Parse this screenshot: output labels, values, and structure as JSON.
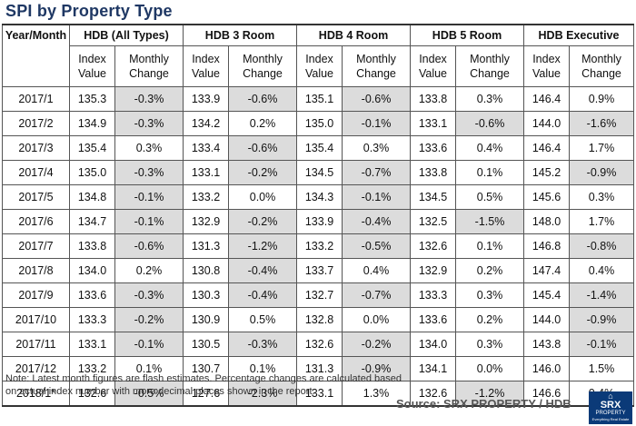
{
  "title": "SPI by Property Type",
  "header": {
    "first_col": "Year/Month",
    "groups": [
      "HDB (All Types)",
      "HDB 3 Room",
      "HDB 4 Room",
      "HDB 5 Room",
      "HDB Executive"
    ],
    "sub_index": "Index Value",
    "sub_change": "Monthly Change"
  },
  "rows": [
    {
      "period": "2017/1",
      "cells": [
        "135.3",
        "-0.3%",
        "133.9",
        "-0.6%",
        "135.1",
        "-0.6%",
        "133.8",
        "0.3%",
        "146.4",
        "0.9%"
      ]
    },
    {
      "period": "2017/2",
      "cells": [
        "134.9",
        "-0.3%",
        "134.2",
        "0.2%",
        "135.0",
        "-0.1%",
        "133.1",
        "-0.6%",
        "144.0",
        "-1.6%"
      ]
    },
    {
      "period": "2017/3",
      "cells": [
        "135.4",
        "0.3%",
        "133.4",
        "-0.6%",
        "135.4",
        "0.3%",
        "133.6",
        "0.4%",
        "146.4",
        "1.7%"
      ]
    },
    {
      "period": "2017/4",
      "cells": [
        "135.0",
        "-0.3%",
        "133.1",
        "-0.2%",
        "134.5",
        "-0.7%",
        "133.8",
        "0.1%",
        "145.2",
        "-0.9%"
      ]
    },
    {
      "period": "2017/5",
      "cells": [
        "134.8",
        "-0.1%",
        "133.2",
        "0.0%",
        "134.3",
        "-0.1%",
        "134.5",
        "0.5%",
        "145.6",
        "0.3%"
      ]
    },
    {
      "period": "2017/6",
      "cells": [
        "134.7",
        "-0.1%",
        "132.9",
        "-0.2%",
        "133.9",
        "-0.4%",
        "132.5",
        "-1.5%",
        "148.0",
        "1.7%"
      ]
    },
    {
      "period": "2017/7",
      "cells": [
        "133.8",
        "-0.6%",
        "131.3",
        "-1.2%",
        "133.2",
        "-0.5%",
        "132.6",
        "0.1%",
        "146.8",
        "-0.8%"
      ]
    },
    {
      "period": "2017/8",
      "cells": [
        "134.0",
        "0.2%",
        "130.8",
        "-0.4%",
        "133.7",
        "0.4%",
        "132.9",
        "0.2%",
        "147.4",
        "0.4%"
      ]
    },
    {
      "period": "2017/9",
      "cells": [
        "133.6",
        "-0.3%",
        "130.3",
        "-0.4%",
        "132.7",
        "-0.7%",
        "133.3",
        "0.3%",
        "145.4",
        "-1.4%"
      ]
    },
    {
      "period": "2017/10",
      "cells": [
        "133.3",
        "-0.2%",
        "130.9",
        "0.5%",
        "132.8",
        "0.0%",
        "133.6",
        "0.2%",
        "144.0",
        "-0.9%"
      ]
    },
    {
      "period": "2017/11",
      "cells": [
        "133.1",
        "-0.1%",
        "130.5",
        "-0.3%",
        "132.6",
        "-0.2%",
        "134.0",
        "0.3%",
        "143.8",
        "-0.1%"
      ]
    },
    {
      "period": "2017/12",
      "cells": [
        "133.2",
        "0.1%",
        "130.7",
        "0.1%",
        "131.3",
        "-0.9%",
        "134.1",
        "0.0%",
        "146.0",
        "1.5%"
      ]
    },
    {
      "period": "2018/1*",
      "cells": [
        "132.6",
        "-0.5%",
        "127.6",
        "-2.3%",
        "133.1",
        "1.3%",
        "132.6",
        "-1.2%",
        "146.6",
        "0.4%"
      ]
    }
  ],
  "note_line1": "Note: Latest month figures are flash estimates. Percentage changes are calculated based",
  "note_line2": "on actual index number with more decimal places shown in the report.",
  "source": "Source:  SRX PROPERTY / HDB",
  "logo": {
    "name": "SRX",
    "sub": "PROPERTY",
    "tagline": "Everything Real Estate",
    "icon": "house-icon"
  },
  "colors": {
    "title": "#1f3864",
    "negative_fill": "#dcdcdc",
    "logo_bg": "#0b3a78"
  }
}
